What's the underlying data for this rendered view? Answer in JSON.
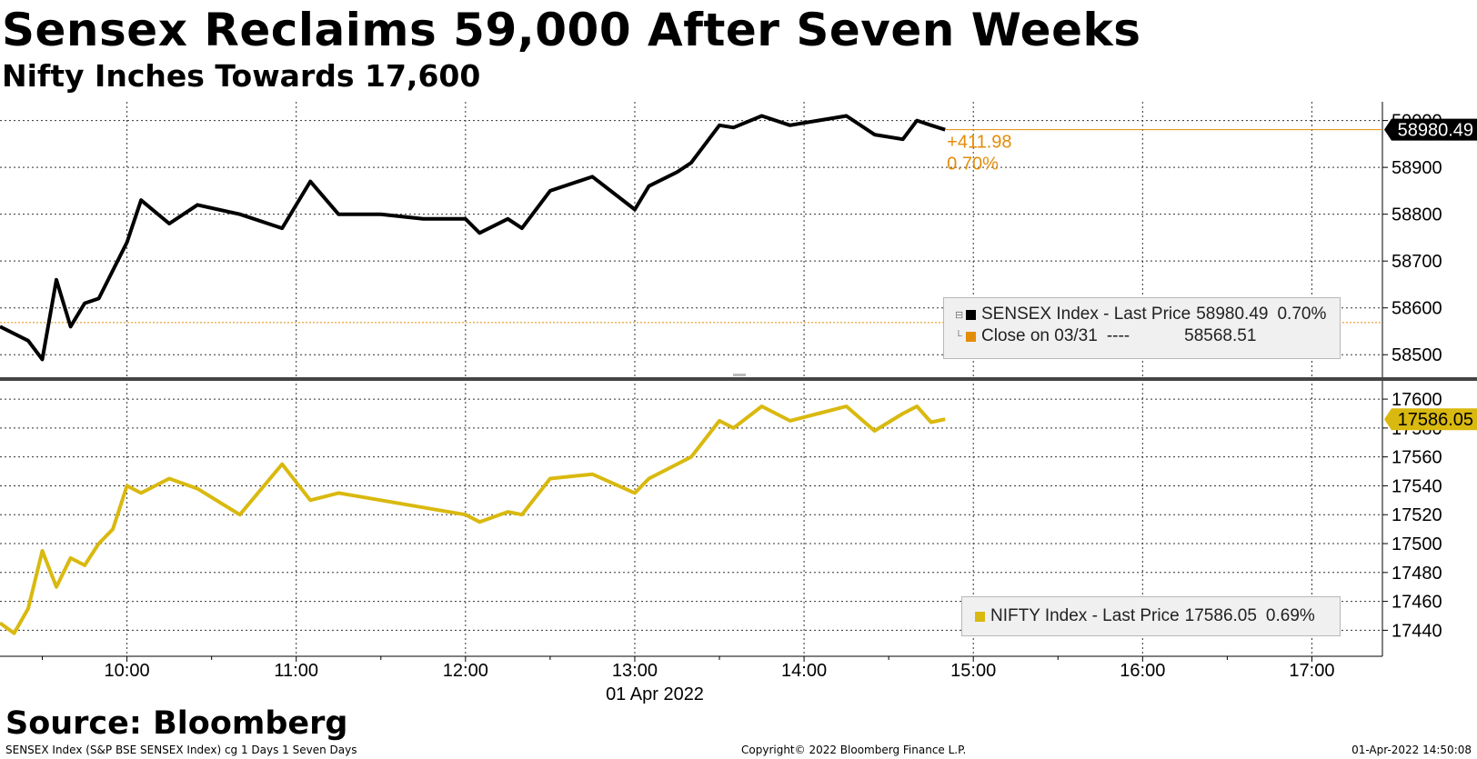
{
  "title": "Sensex Reclaims 59,000 After Seven Weeks",
  "subtitle": "Nifty Inches Towards 17,600",
  "source": "Source: Bloomberg",
  "footer": {
    "left": "SENSEX Index (S&P BSE SENSEX Index) cg 1 Days 1 Seven Days",
    "center": "Copyright© 2022 Bloomberg Finance L.P.",
    "right": "01-Apr-2022 14:50:08"
  },
  "colors": {
    "sensex": "#000000",
    "nifty": "#d9b90f",
    "close": "#e38c08",
    "grid": "#333333"
  },
  "legend_top": {
    "row1_name": "SENSEX Index - Last Price",
    "row1_value": "58980.49",
    "row1_pct": "0.70%",
    "row2_name": "Close on 03/31",
    "row2_dashes": "----",
    "row2_value": "58568.51"
  },
  "legend_bottom": {
    "row1_name": "NIFTY Index - Last Price",
    "row1_value": "17586.05",
    "row1_pct": "0.69%"
  },
  "chart_data": [
    {
      "type": "line",
      "title": "Sensex Reclaims 59,000 After Seven Weeks",
      "series": [
        {
          "name": "SENSEX Index - Last Price",
          "x": [
            "09:15",
            "09:25",
            "09:30",
            "09:35",
            "09:40",
            "09:45",
            "09:50",
            "09:55",
            "10:00",
            "10:05",
            "10:15",
            "10:25",
            "10:40",
            "10:55",
            "11:05",
            "11:15",
            "11:30",
            "11:45",
            "12:00",
            "12:05",
            "12:15",
            "12:20",
            "12:30",
            "12:45",
            "13:00",
            "13:05",
            "13:15",
            "13:20",
            "13:30",
            "13:35",
            "13:45",
            "13:55",
            "14:05",
            "14:15",
            "14:25",
            "14:35",
            "14:40",
            "14:45",
            "14:50"
          ],
          "values": [
            58560,
            58530,
            58490,
            58660,
            58560,
            58610,
            58620,
            58680,
            58740,
            58830,
            58780,
            58820,
            58800,
            58770,
            58870,
            58800,
            58800,
            58790,
            58790,
            58760,
            58790,
            58770,
            58850,
            58880,
            58810,
            58860,
            58890,
            58910,
            58990,
            58985,
            59010,
            58990,
            59000,
            59010,
            58970,
            58960,
            59000,
            58990,
            58980.49
          ]
        },
        {
          "name": "Close on 03/31",
          "value": 58568.51
        }
      ],
      "last_value_label": "58980.49",
      "change_label": "+411.98",
      "change_pct_label": "0.70%",
      "y_ticks": [
        "59000",
        "58900",
        "58800",
        "58700",
        "58600",
        "58500"
      ],
      "ylim": [
        58450,
        59040
      ],
      "x_ticks": [
        "10:00",
        "11:00",
        "12:00",
        "13:00",
        "14:00",
        "15:00",
        "16:00",
        "17:00"
      ],
      "xlim": [
        "09:15",
        "17:25"
      ],
      "xlabel": "01 Apr 2022",
      "grid": true,
      "legend": "bottom-right"
    },
    {
      "type": "line",
      "series": [
        {
          "name": "NIFTY Index - Last Price",
          "x": [
            "09:15",
            "09:20",
            "09:25",
            "09:30",
            "09:35",
            "09:40",
            "09:45",
            "09:50",
            "09:55",
            "10:00",
            "10:05",
            "10:15",
            "10:25",
            "10:40",
            "10:55",
            "11:05",
            "11:15",
            "11:30",
            "11:45",
            "12:00",
            "12:05",
            "12:15",
            "12:20",
            "12:30",
            "12:45",
            "13:00",
            "13:05",
            "13:15",
            "13:20",
            "13:30",
            "13:35",
            "13:45",
            "13:55",
            "14:05",
            "14:15",
            "14:25",
            "14:35",
            "14:40",
            "14:45",
            "14:50"
          ],
          "values": [
            17445,
            17438,
            17455,
            17495,
            17470,
            17490,
            17485,
            17500,
            17510,
            17540,
            17535,
            17545,
            17538,
            17520,
            17555,
            17530,
            17535,
            17530,
            17525,
            17520,
            17515,
            17522,
            17520,
            17545,
            17548,
            17535,
            17545,
            17555,
            17560,
            17585,
            17580,
            17595,
            17585,
            17590,
            17595,
            17578,
            17590,
            17595,
            17584,
            17586.05
          ]
        }
      ],
      "last_value_label": "17586.05",
      "y_ticks": [
        "17600",
        "17580",
        "17560",
        "17540",
        "17520",
        "17500",
        "17480",
        "17460",
        "17440"
      ],
      "ylim": [
        17422,
        17612
      ],
      "x_ticks": [
        "10:00",
        "11:00",
        "12:00",
        "13:00",
        "14:00",
        "15:00",
        "16:00",
        "17:00"
      ],
      "xlim": [
        "09:15",
        "17:25"
      ],
      "xlabel": "01 Apr 2022",
      "grid": true,
      "legend": "bottom-right"
    }
  ]
}
